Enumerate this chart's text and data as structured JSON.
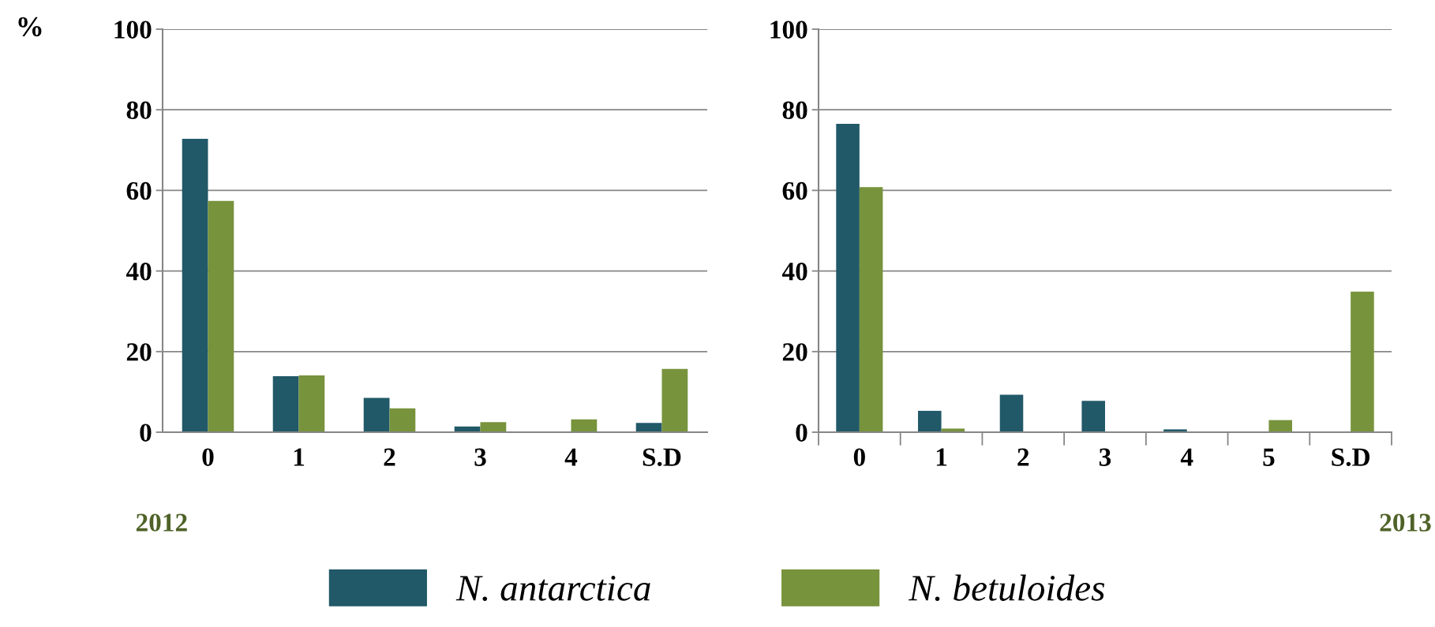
{
  "chart_data": [
    {
      "type": "bar",
      "ylabel": "%",
      "categories": [
        "0",
        "1",
        "2",
        "3",
        "4",
        "S.D"
      ],
      "series": [
        {
          "name": "N. antarctica",
          "color": "#215968",
          "values": [
            72.8,
            13.9,
            8.5,
            1.4,
            0,
            2.3
          ]
        },
        {
          "name": "N. betuloides",
          "color": "#77933c",
          "values": [
            57.4,
            14.1,
            5.9,
            2.5,
            3.2,
            15.7
          ]
        }
      ],
      "ylim": [
        0,
        100
      ],
      "yticks": [
        0,
        20,
        40,
        60,
        80,
        100
      ],
      "grid": "y",
      "legend": "bottom",
      "annotations": [
        "2012"
      ]
    },
    {
      "type": "bar",
      "categories": [
        "0",
        "1",
        "2",
        "3",
        "4",
        "5",
        "S.D"
      ],
      "series": [
        {
          "color": "#215968",
          "values": [
            76.5,
            5.3,
            9.3,
            7.8,
            0.7,
            0,
            0
          ]
        },
        {
          "color": "#77933c",
          "values": [
            60.8,
            0.9,
            0,
            0,
            0,
            3.0,
            34.9
          ]
        }
      ],
      "ylim": [
        0,
        100
      ],
      "yticks": [
        0,
        20,
        40,
        60,
        80,
        100
      ],
      "grid": "y",
      "annotations": [
        "2013"
      ]
    }
  ]
}
